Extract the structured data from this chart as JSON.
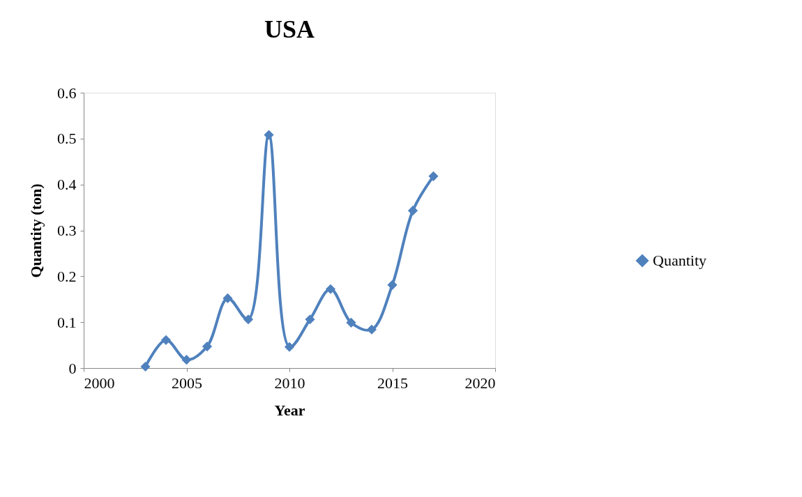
{
  "chart_data": {
    "type": "line",
    "title": "USA",
    "xlabel": "Year",
    "ylabel": "Quantity (ton)",
    "x": [
      2003,
      2004,
      2005,
      2006,
      2007,
      2008,
      2009,
      2010,
      2011,
      2012,
      2013,
      2014,
      2015,
      2016,
      2017
    ],
    "series": [
      {
        "name": "Quantity",
        "color": "#4f81bd",
        "values": [
          0.003,
          0.061,
          0.018,
          0.047,
          0.152,
          0.106,
          0.508,
          0.046,
          0.106,
          0.172,
          0.099,
          0.084,
          0.181,
          0.343,
          0.418
        ]
      }
    ],
    "xlim": [
      2000,
      2020
    ],
    "xticks": [
      2000,
      2005,
      2010,
      2015,
      2020
    ],
    "ylim": [
      0,
      0.6
    ],
    "yticks": [
      0,
      0.1,
      0.2,
      0.3,
      0.4,
      0.5,
      0.6
    ],
    "grid": false,
    "legend": "right",
    "marker": "diamond",
    "line_style": "solid"
  }
}
